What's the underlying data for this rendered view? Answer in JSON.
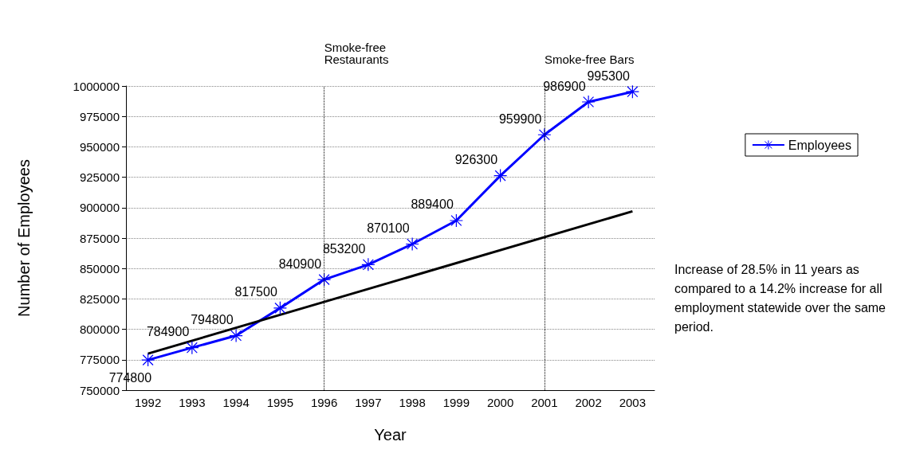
{
  "chart_data": {
    "type": "line",
    "xlabel": "Year",
    "ylabel": "Number of Employees",
    "categories": [
      "1992",
      "1993",
      "1994",
      "1995",
      "1996",
      "1997",
      "1998",
      "1999",
      "2000",
      "2001",
      "2002",
      "2003"
    ],
    "series": [
      {
        "name": "Employees",
        "color": "#0000ff",
        "values": [
          774800,
          784900,
          794800,
          817500,
          840900,
          853200,
          870100,
          889400,
          926300,
          959900,
          986900,
          995300
        ],
        "marker": "cross"
      },
      {
        "type": "line",
        "color": "#000000",
        "values": [
          780000,
          null,
          null,
          null,
          null,
          null,
          null,
          null,
          null,
          null,
          null,
          897000
        ],
        "marker": "none",
        "data_labels": false
      }
    ],
    "ylim": [
      750000,
      1000000
    ],
    "yticks": [
      750000,
      775000,
      800000,
      825000,
      850000,
      875000,
      900000,
      925000,
      950000,
      975000,
      1000000
    ],
    "grid": "y",
    "legend": "right",
    "data_labels": true,
    "ref_lines": [
      {
        "axis": "x",
        "value": "1996",
        "label": "Smoke-free Restaurants",
        "line_style": "dotted",
        "color": "#000000"
      },
      {
        "axis": "x",
        "value": "2001",
        "label": "Smoke-free Bars",
        "line_style": "dotted",
        "color": "#000000"
      }
    ],
    "annotations": [
      "Increase of 28.5% in 11 years as compared to a 14.2% increase for all employment statewide over the same period."
    ]
  }
}
